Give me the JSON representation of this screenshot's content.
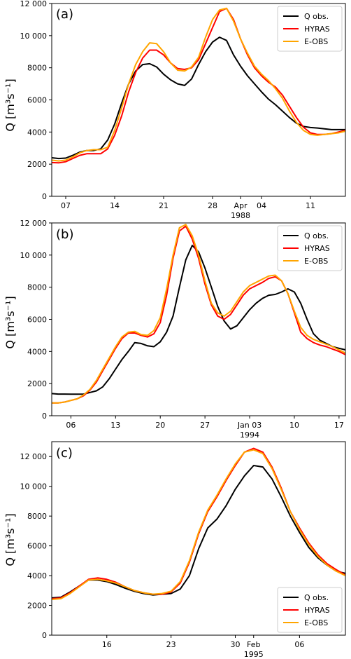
{
  "chart_data": [
    {
      "type": "line",
      "panel_label": "(a)",
      "ylabel": "Q [m³s⁻¹]",
      "ylim": [
        0,
        12000
      ],
      "yticks": [
        0,
        2000,
        4000,
        6000,
        8000,
        10000,
        12000
      ],
      "ytick_labels": [
        "0",
        "2000",
        "4000",
        "6000",
        "8000",
        "10 000",
        "12 000"
      ],
      "xlim": [
        0,
        42
      ],
      "xticks": [
        {
          "x": 2,
          "label": "07",
          "sub": ""
        },
        {
          "x": 9,
          "label": "14",
          "sub": ""
        },
        {
          "x": 16,
          "label": "21",
          "sub": ""
        },
        {
          "x": 23,
          "label": "28",
          "sub": ""
        },
        {
          "x": 27,
          "label": "Apr",
          "sub": "1988"
        },
        {
          "x": 30,
          "label": "04",
          "sub": ""
        },
        {
          "x": 37,
          "label": "11",
          "sub": ""
        }
      ],
      "legend_position": "top-right",
      "series": [
        {
          "name": "Q obs.",
          "color": "#000000",
          "x": [
            0,
            1,
            2,
            3,
            4,
            5,
            6,
            7,
            8,
            9,
            10,
            11,
            12,
            13,
            14,
            15,
            16,
            17,
            18,
            19,
            20,
            21,
            22,
            23,
            24,
            25,
            26,
            27,
            28,
            29,
            30,
            31,
            32,
            33,
            34,
            35,
            36,
            37,
            38,
            39,
            40,
            41,
            42
          ],
          "values": [
            2400,
            2350,
            2380,
            2550,
            2750,
            2850,
            2850,
            2950,
            3500,
            4500,
            5800,
            7000,
            7800,
            8200,
            8250,
            8050,
            7600,
            7250,
            7000,
            6900,
            7300,
            8200,
            9000,
            9600,
            9900,
            9700,
            8800,
            8100,
            7500,
            7000,
            6500,
            6050,
            5700,
            5300,
            4900,
            4550,
            4350,
            4280,
            4250,
            4200,
            4150,
            4150,
            4150
          ]
        },
        {
          "name": "HYRAS",
          "color": "#ff0000",
          "x": [
            0,
            1,
            2,
            3,
            4,
            5,
            6,
            7,
            8,
            9,
            10,
            11,
            12,
            13,
            14,
            15,
            16,
            17,
            18,
            19,
            20,
            21,
            22,
            23,
            24,
            25,
            26,
            27,
            28,
            29,
            30,
            31,
            32,
            33,
            34,
            35,
            36,
            37,
            38,
            39,
            40,
            41,
            42
          ],
          "values": [
            2100,
            2080,
            2150,
            2350,
            2550,
            2650,
            2650,
            2650,
            2950,
            3800,
            5000,
            6500,
            7700,
            8600,
            9100,
            9100,
            8800,
            8300,
            7950,
            7900,
            8000,
            8500,
            9500,
            10500,
            11500,
            11700,
            11000,
            9800,
            8800,
            8000,
            7500,
            7100,
            6800,
            6300,
            5600,
            4900,
            4300,
            3950,
            3850,
            3850,
            3900,
            4000,
            4100
          ]
        },
        {
          "name": "E-OBS",
          "color": "#ffa500",
          "x": [
            0,
            1,
            2,
            3,
            4,
            5,
            6,
            7,
            8,
            9,
            10,
            11,
            12,
            13,
            14,
            15,
            16,
            17,
            18,
            19,
            20,
            21,
            22,
            23,
            24,
            25,
            26,
            27,
            28,
            29,
            30,
            31,
            32,
            33,
            34,
            35,
            36,
            37,
            38,
            39,
            40,
            41,
            42
          ],
          "values": [
            2250,
            2200,
            2250,
            2450,
            2700,
            2850,
            2900,
            2900,
            3050,
            4100,
            5500,
            7000,
            8200,
            9000,
            9550,
            9500,
            9000,
            8300,
            7850,
            7800,
            8050,
            8650,
            9900,
            11000,
            11600,
            11700,
            10900,
            9800,
            8900,
            8100,
            7600,
            7200,
            6700,
            6100,
            5300,
            4600,
            4100,
            3850,
            3800,
            3850,
            3900,
            3950,
            4050
          ]
        }
      ]
    },
    {
      "type": "line",
      "panel_label": "(b)",
      "ylabel": "Q [m³s⁻¹]",
      "ylim": [
        0,
        12000
      ],
      "yticks": [
        0,
        2000,
        4000,
        6000,
        8000,
        10000,
        12000
      ],
      "ytick_labels": [
        "0",
        "2000",
        "4000",
        "6000",
        "8000",
        "10 000",
        "12 000"
      ],
      "xlim": [
        0,
        46
      ],
      "xticks": [
        {
          "x": 3,
          "label": "06",
          "sub": ""
        },
        {
          "x": 10,
          "label": "13",
          "sub": ""
        },
        {
          "x": 17,
          "label": "20",
          "sub": ""
        },
        {
          "x": 24,
          "label": "27",
          "sub": ""
        },
        {
          "x": 31,
          "label": "Jan 03",
          "sub": "1994"
        },
        {
          "x": 38,
          "label": "10",
          "sub": ""
        },
        {
          "x": 45,
          "label": "17",
          "sub": ""
        }
      ],
      "legend_position": "top-right",
      "series": [
        {
          "name": "Q obs.",
          "color": "#000000",
          "x": [
            0,
            1,
            2,
            3,
            4,
            5,
            6,
            7,
            8,
            9,
            10,
            11,
            12,
            13,
            14,
            15,
            16,
            17,
            18,
            19,
            20,
            21,
            22,
            23,
            24,
            25,
            26,
            27,
            28,
            29,
            30,
            31,
            32,
            33,
            34,
            35,
            36,
            37,
            38,
            39,
            40,
            41,
            42,
            43,
            44,
            45,
            46
          ],
          "values": [
            1380,
            1350,
            1350,
            1340,
            1340,
            1350,
            1450,
            1550,
            1800,
            2300,
            2900,
            3500,
            4000,
            4550,
            4500,
            4350,
            4300,
            4600,
            5200,
            6200,
            8000,
            9700,
            10600,
            10200,
            9200,
            8000,
            6800,
            5900,
            5400,
            5600,
            6100,
            6600,
            7000,
            7300,
            7500,
            7550,
            7700,
            7900,
            7700,
            7000,
            6000,
            5100,
            4700,
            4500,
            4300,
            4200,
            4100
          ]
        },
        {
          "name": "HYRAS",
          "color": "#ff0000",
          "x": [
            0,
            1,
            2,
            3,
            4,
            5,
            6,
            7,
            8,
            9,
            10,
            11,
            12,
            13,
            14,
            15,
            16,
            17,
            18,
            19,
            20,
            21,
            22,
            23,
            24,
            25,
            26,
            27,
            28,
            29,
            30,
            31,
            32,
            33,
            34,
            35,
            36,
            37,
            38,
            39,
            40,
            41,
            42,
            43,
            44,
            45,
            46
          ],
          "values": [
            800,
            800,
            850,
            950,
            1050,
            1250,
            1600,
            2100,
            2800,
            3500,
            4200,
            4800,
            5150,
            5150,
            5000,
            4900,
            5100,
            5800,
            7500,
            9800,
            11500,
            11800,
            11000,
            9800,
            8200,
            6900,
            6200,
            6000,
            6300,
            6900,
            7500,
            7900,
            8100,
            8300,
            8550,
            8650,
            8400,
            7600,
            6400,
            5200,
            4800,
            4550,
            4400,
            4300,
            4150,
            4000,
            3800
          ]
        },
        {
          "name": "E-OBS",
          "color": "#ffa500",
          "x": [
            0,
            1,
            2,
            3,
            4,
            5,
            6,
            7,
            8,
            9,
            10,
            11,
            12,
            13,
            14,
            15,
            16,
            17,
            18,
            19,
            20,
            21,
            22,
            23,
            24,
            25,
            26,
            27,
            28,
            29,
            30,
            31,
            32,
            33,
            34,
            35,
            36,
            37,
            38,
            39,
            40,
            41,
            42,
            43,
            44,
            45,
            46
          ],
          "values": [
            800,
            800,
            850,
            950,
            1050,
            1300,
            1650,
            2200,
            2900,
            3600,
            4300,
            4900,
            5200,
            5250,
            5050,
            5000,
            5300,
            6100,
            7900,
            10000,
            11700,
            11900,
            11200,
            10000,
            8400,
            7000,
            6400,
            6200,
            6500,
            7100,
            7700,
            8100,
            8300,
            8500,
            8700,
            8750,
            8400,
            7600,
            6500,
            5500,
            5000,
            4750,
            4600,
            4450,
            4300,
            4100,
            3900
          ]
        }
      ]
    },
    {
      "type": "line",
      "panel_label": "(c)",
      "ylabel": "Q [m³s⁻¹]",
      "ylim": [
        0,
        13000
      ],
      "yticks": [
        0,
        2000,
        4000,
        6000,
        8000,
        10000,
        12000
      ],
      "ytick_labels": [
        "0",
        "2000",
        "4000",
        "6000",
        "8000",
        "10 000",
        "12 000"
      ],
      "xlim": [
        0,
        32
      ],
      "xticks": [
        {
          "x": 6,
          "label": "16",
          "sub": ""
        },
        {
          "x": 13,
          "label": "23",
          "sub": ""
        },
        {
          "x": 20,
          "label": "30",
          "sub": ""
        },
        {
          "x": 22,
          "label": "Feb",
          "sub": "1995"
        },
        {
          "x": 27,
          "label": "06",
          "sub": ""
        }
      ],
      "legend_position": "bottom-right",
      "series": [
        {
          "name": "Q obs.",
          "color": "#000000",
          "x": [
            0,
            1,
            2,
            3,
            4,
            5,
            6,
            7,
            8,
            9,
            10,
            11,
            12,
            13,
            14,
            15,
            16,
            17,
            18,
            19,
            20,
            21,
            22,
            23,
            24,
            25,
            26,
            27,
            28,
            29,
            30,
            31,
            32
          ],
          "values": [
            2500,
            2550,
            2900,
            3300,
            3700,
            3700,
            3600,
            3400,
            3150,
            2950,
            2800,
            2700,
            2750,
            2800,
            3100,
            4000,
            5800,
            7200,
            7800,
            8700,
            9800,
            10700,
            11400,
            11300,
            10500,
            9300,
            8000,
            6900,
            5900,
            5200,
            4700,
            4300,
            4150
          ]
        },
        {
          "name": "HYRAS",
          "color": "#ff0000",
          "x": [
            0,
            1,
            2,
            3,
            4,
            5,
            6,
            7,
            8,
            9,
            10,
            11,
            12,
            13,
            14,
            15,
            16,
            17,
            18,
            19,
            20,
            21,
            22,
            23,
            24,
            25,
            26,
            27,
            28,
            29,
            30,
            31,
            32
          ],
          "values": [
            2450,
            2500,
            2850,
            3300,
            3750,
            3850,
            3750,
            3550,
            3250,
            3000,
            2850,
            2750,
            2750,
            2900,
            3500,
            4900,
            6800,
            8300,
            9300,
            10400,
            11400,
            12300,
            12550,
            12300,
            11300,
            9900,
            8300,
            7200,
            6200,
            5400,
            4800,
            4400,
            4050
          ]
        },
        {
          "name": "E-OBS",
          "color": "#ffa500",
          "x": [
            0,
            1,
            2,
            3,
            4,
            5,
            6,
            7,
            8,
            9,
            10,
            11,
            12,
            13,
            14,
            15,
            16,
            17,
            18,
            19,
            20,
            21,
            22,
            23,
            24,
            25,
            26,
            27,
            28,
            29,
            30,
            31,
            32
          ],
          "values": [
            2400,
            2450,
            2800,
            3250,
            3700,
            3750,
            3650,
            3500,
            3250,
            3000,
            2850,
            2750,
            2800,
            2950,
            3600,
            5000,
            6900,
            8400,
            9400,
            10500,
            11500,
            12300,
            12450,
            12200,
            11200,
            9800,
            8300,
            7100,
            6100,
            5300,
            4700,
            4300,
            4000
          ]
        }
      ]
    }
  ]
}
